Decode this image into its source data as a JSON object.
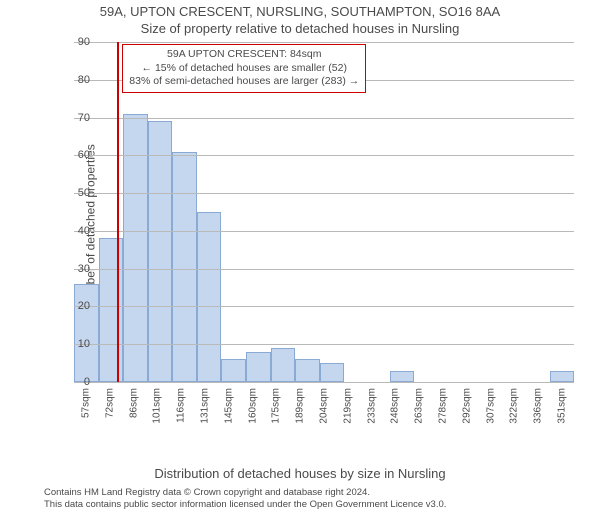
{
  "title_line1": "59A, UPTON CRESCENT, NURSLING, SOUTHAMPTON, SO16 8AA",
  "title_line2": "Size of property relative to detached houses in Nursling",
  "chart": {
    "type": "histogram",
    "ylabel": "Number of detached properties",
    "xlabel": "Distribution of detached houses by size in Nursling",
    "ylim": [
      0,
      90
    ],
    "ytick_step": 10,
    "bar_fill": "#c5d7ef",
    "bar_border": "#8aaad4",
    "grid_color": "#b9b9b9",
    "background_color": "#ffffff",
    "text_color": "#4a4a4a",
    "categories": [
      "57sqm",
      "72sqm",
      "86sqm",
      "101sqm",
      "116sqm",
      "131sqm",
      "145sqm",
      "160sqm",
      "175sqm",
      "189sqm",
      "204sqm",
      "219sqm",
      "233sqm",
      "248sqm",
      "263sqm",
      "278sqm",
      "292sqm",
      "307sqm",
      "322sqm",
      "336sqm",
      "351sqm"
    ],
    "values": [
      26,
      38,
      71,
      69,
      61,
      45,
      6,
      8,
      9,
      6,
      5,
      0,
      0,
      3,
      0,
      0,
      0,
      0,
      0,
      0,
      3
    ],
    "ref_line": {
      "value_sqm": 84,
      "color": "#cc0000",
      "category_index_before": 1,
      "fraction_into_next": 0.86
    },
    "callout": {
      "border_color": "#cc0000",
      "line1": "59A UPTON CRESCENT: 84sqm",
      "line2": "← 15% of detached houses are smaller (52)",
      "line3": "83% of semi-detached houses are larger (283) →"
    }
  },
  "footer": {
    "line1": "Contains HM Land Registry data © Crown copyright and database right 2024.",
    "line2": "This data contains public sector information licensed under the Open Government Licence v3.0."
  }
}
